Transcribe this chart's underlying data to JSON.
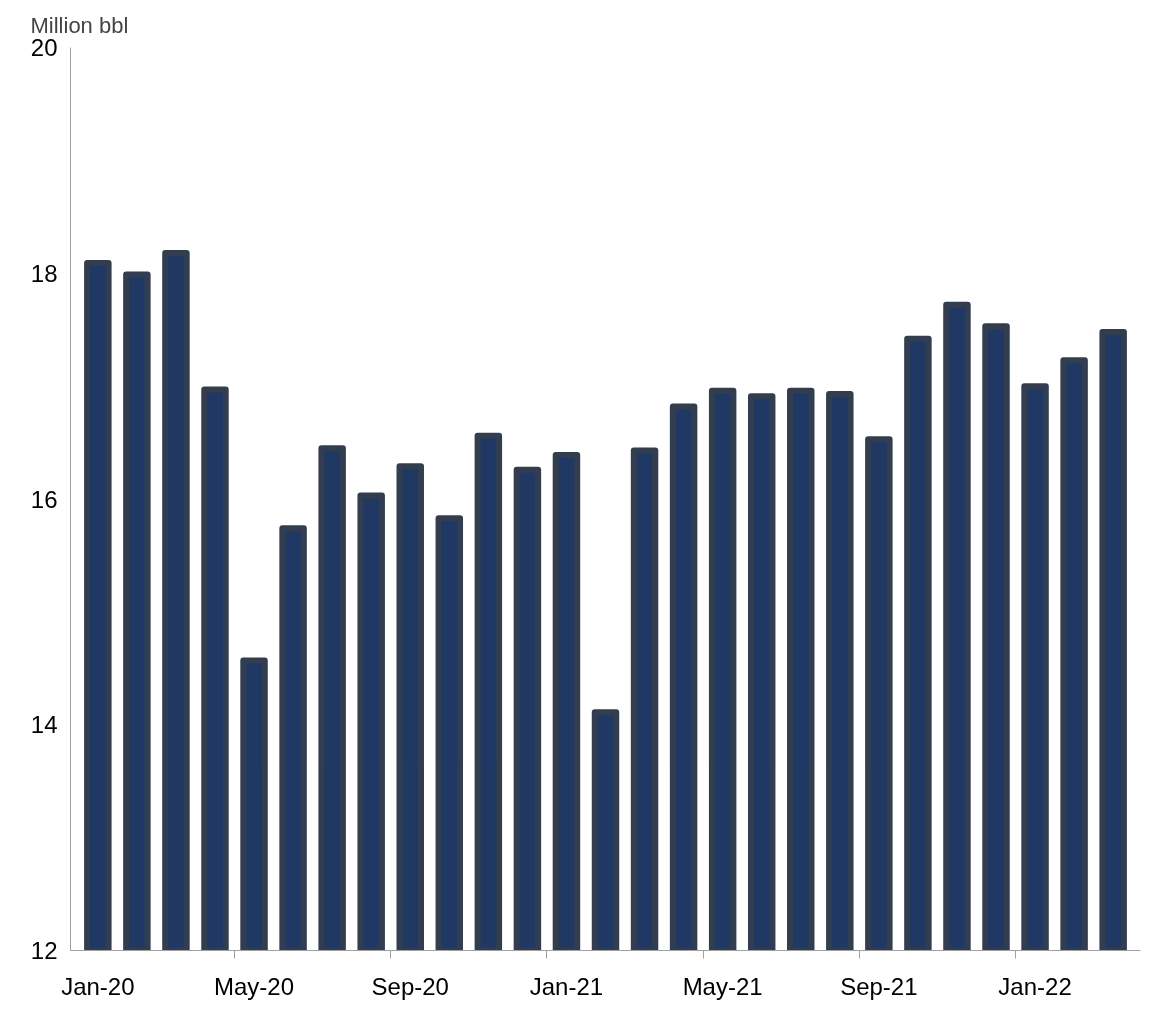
{
  "chart_data": {
    "type": "bar",
    "ylabel": "Million bbl",
    "categories": [
      "Jan-20",
      null,
      null,
      null,
      "May-20",
      null,
      null,
      null,
      "Sep-20",
      null,
      null,
      null,
      "Jan-21",
      null,
      null,
      null,
      "May-21",
      null,
      null,
      null,
      "Sep-21",
      null,
      null,
      null,
      "Jan-22",
      null,
      null
    ],
    "values": [
      18.09,
      17.99,
      18.18,
      16.97,
      14.57,
      15.74,
      16.45,
      16.03,
      16.29,
      15.83,
      16.56,
      16.26,
      16.39,
      14.11,
      16.43,
      16.82,
      16.96,
      16.91,
      16.96,
      16.93,
      16.53,
      17.42,
      17.72,
      17.53,
      17.0,
      17.23,
      17.48
    ],
    "color": "#203864",
    "ylim": [
      12,
      20
    ],
    "yticks": [
      12,
      14,
      16,
      18,
      20
    ],
    "grid": false
  }
}
